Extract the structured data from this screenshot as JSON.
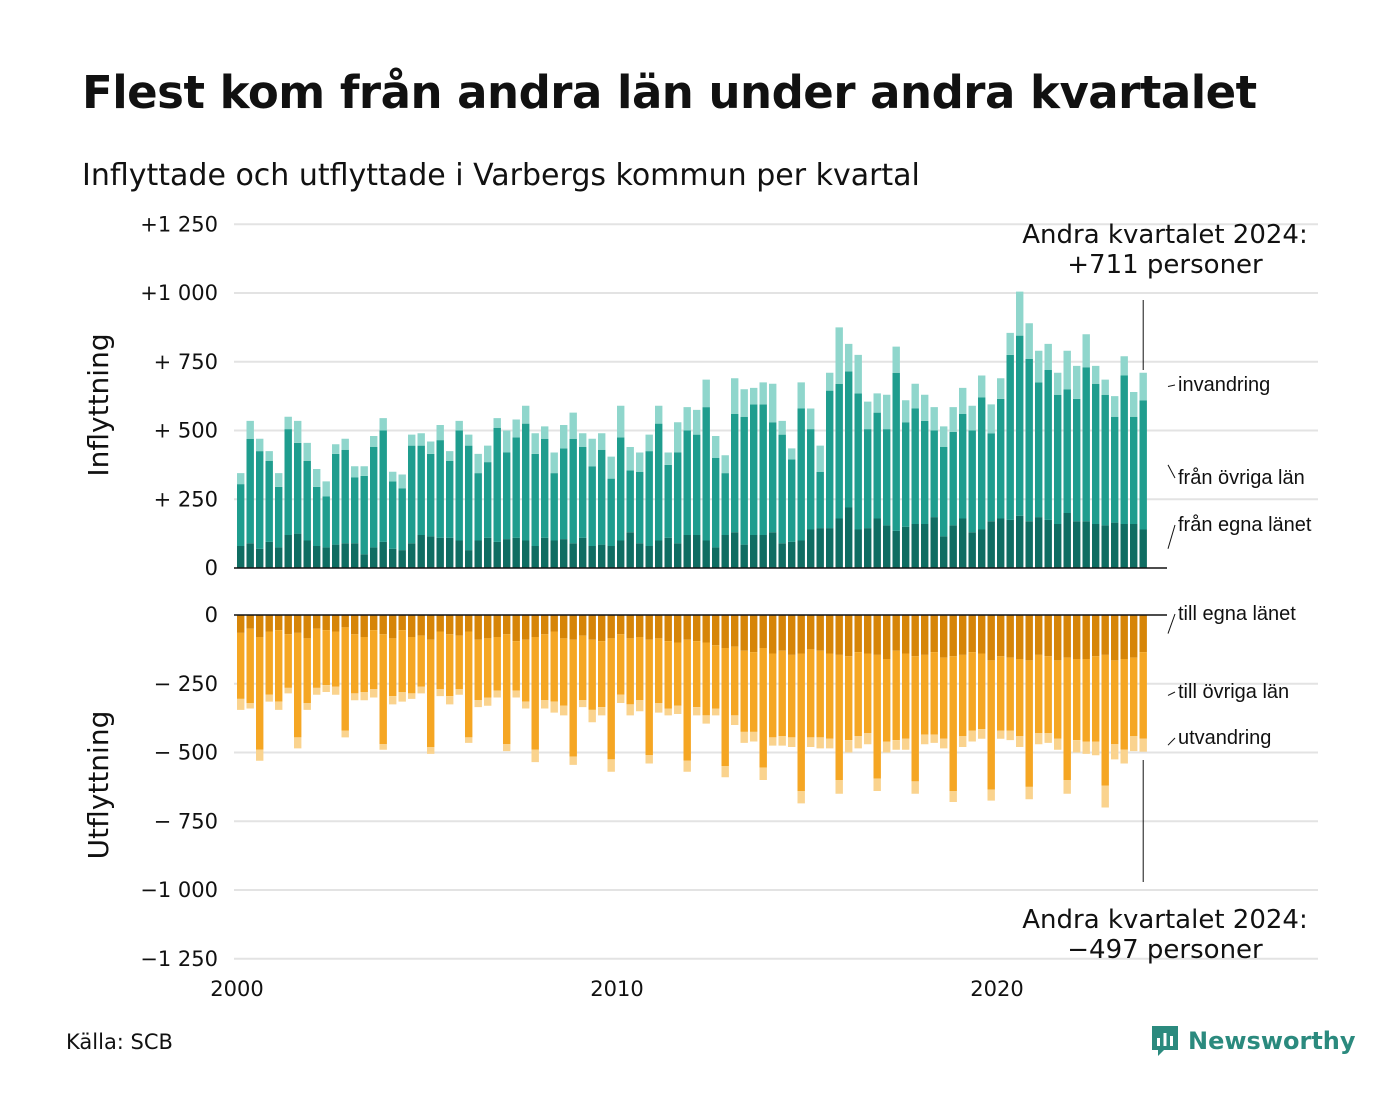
{
  "title": "Flest kom från andra län under andra kvartalet",
  "subtitle": "Inflyttade och utflyttade i Varbergs kommun per kvartal",
  "source": "Källa: SCB",
  "brand": "Newsworthy",
  "colors": {
    "in_egna": "#0f6d62",
    "in_ovriga": "#1f9d8e",
    "in_invandring": "#8fd6cc",
    "out_egna": "#d68508",
    "out_ovriga": "#f5a623",
    "out_utvandring": "#fad38e",
    "brand": "#2b8a7e"
  },
  "chart_data": {
    "type": "bar",
    "stacked": true,
    "xlabel": "",
    "x_ticks": [
      "2000",
      "2010",
      "2020"
    ],
    "x_start": "2000-Q1",
    "x_end": "2024-Q2",
    "grid": true,
    "top_panel": {
      "ylabel": "Inflyttning",
      "ylim": [
        0,
        1250
      ],
      "ytick_labels": [
        "0",
        "+  250",
        "+  500",
        "+  750",
        "+1 000",
        "+1 250"
      ],
      "series": [
        {
          "name": "från egna länet",
          "label": "från egna länet",
          "values": [
            80,
            90,
            70,
            95,
            75,
            120,
            125,
            100,
            80,
            75,
            85,
            90,
            90,
            50,
            75,
            95,
            70,
            65,
            90,
            120,
            115,
            110,
            110,
            100,
            65,
            100,
            110,
            95,
            105,
            110,
            100,
            80,
            110,
            100,
            105,
            90,
            110,
            80,
            85,
            80,
            100,
            130,
            90,
            80,
            100,
            110,
            90,
            120,
            120,
            100,
            75,
            120,
            130,
            85,
            120,
            120,
            130,
            90,
            95,
            100,
            140,
            145,
            145,
            180,
            220,
            140,
            145,
            180,
            155,
            135,
            150,
            160,
            160,
            185,
            115,
            155,
            180,
            130,
            140,
            170,
            180,
            175,
            190,
            170,
            185,
            175,
            160,
            200,
            170,
            170,
            160,
            155,
            165,
            160,
            160,
            140
          ]
        },
        {
          "name": "från övriga län",
          "label": "från övriga län",
          "values": [
            225,
            380,
            355,
            295,
            220,
            385,
            330,
            290,
            215,
            185,
            330,
            340,
            240,
            285,
            365,
            405,
            245,
            225,
            355,
            325,
            300,
            355,
            280,
            400,
            380,
            245,
            275,
            415,
            315,
            365,
            425,
            335,
            360,
            245,
            330,
            380,
            330,
            290,
            345,
            245,
            375,
            225,
            260,
            345,
            425,
            265,
            330,
            380,
            365,
            485,
            325,
            225,
            430,
            465,
            475,
            475,
            400,
            395,
            300,
            480,
            365,
            205,
            500,
            490,
            495,
            495,
            360,
            385,
            350,
            575,
            380,
            420,
            375,
            315,
            325,
            340,
            380,
            370,
            480,
            320,
            435,
            600,
            655,
            590,
            490,
            545,
            470,
            450,
            445,
            560,
            510,
            475,
            385,
            540,
            390,
            470
          ]
        },
        {
          "name": "invandring",
          "label": "invandring",
          "values": [
            40,
            65,
            45,
            35,
            50,
            45,
            80,
            65,
            65,
            55,
            35,
            40,
            40,
            35,
            40,
            45,
            35,
            50,
            40,
            45,
            45,
            55,
            35,
            35,
            40,
            70,
            60,
            35,
            80,
            65,
            65,
            75,
            45,
            75,
            85,
            95,
            50,
            100,
            60,
            80,
            115,
            85,
            70,
            60,
            65,
            45,
            110,
            85,
            90,
            100,
            80,
            65,
            130,
            100,
            60,
            80,
            140,
            50,
            40,
            95,
            75,
            95,
            65,
            205,
            100,
            140,
            100,
            70,
            125,
            95,
            80,
            90,
            95,
            85,
            75,
            90,
            95,
            90,
            80,
            105,
            75,
            80,
            160,
            130,
            115,
            95,
            80,
            140,
            120,
            120,
            65,
            55,
            75,
            70,
            90,
            100
          ]
        }
      ],
      "annotation": "Andra kvartalet 2024:\n+711 personer",
      "annotation_title": "Andra kvartalet 2024:",
      "annotation_value": "+711 personer"
    },
    "bottom_panel": {
      "ylabel": "Utflyttning",
      "ylim": [
        -1250,
        0
      ],
      "ytick_labels": [
        "0",
        "−  250",
        "−  500",
        "−  750",
        "−1 000",
        "−1 250"
      ],
      "series": [
        {
          "name": "till egna länet",
          "label": "till egna länet",
          "values": [
            -65,
            -50,
            -80,
            -60,
            -55,
            -70,
            -65,
            -85,
            -50,
            -55,
            -60,
            -45,
            -70,
            -80,
            -55,
            -70,
            -85,
            -55,
            -80,
            -75,
            -90,
            -60,
            -70,
            -75,
            -60,
            -90,
            -85,
            -80,
            -70,
            -95,
            -90,
            -80,
            -70,
            -60,
            -85,
            -90,
            -75,
            -90,
            -95,
            -85,
            -70,
            -85,
            -80,
            -90,
            -85,
            -95,
            -100,
            -90,
            -95,
            -100,
            -110,
            -120,
            -115,
            -130,
            -135,
            -120,
            -140,
            -130,
            -145,
            -140,
            -125,
            -130,
            -140,
            -145,
            -150,
            -135,
            -140,
            -145,
            -160,
            -130,
            -140,
            -150,
            -145,
            -135,
            -155,
            -150,
            -145,
            -135,
            -140,
            -165,
            -150,
            -155,
            -160,
            -165,
            -145,
            -150,
            -165,
            -155,
            -160,
            -160,
            -150,
            -145,
            -165,
            -160,
            -155,
            -135
          ]
        },
        {
          "name": "till övriga län",
          "label": "till övriga län",
          "values": [
            -240,
            -270,
            -410,
            -230,
            -260,
            -195,
            -380,
            -235,
            -215,
            -200,
            -200,
            -375,
            -215,
            -200,
            -215,
            -400,
            -210,
            -225,
            -205,
            -185,
            -390,
            -210,
            -225,
            -195,
            -385,
            -220,
            -215,
            -195,
            -400,
            -180,
            -225,
            -410,
            -240,
            -255,
            -245,
            -425,
            -235,
            -255,
            -240,
            -440,
            -220,
            -240,
            -230,
            -420,
            -235,
            -245,
            -230,
            -440,
            -240,
            -265,
            -230,
            -430,
            -250,
            -295,
            -290,
            -435,
            -305,
            -310,
            -300,
            -500,
            -320,
            -315,
            -310,
            -455,
            -305,
            -305,
            -290,
            -450,
            -300,
            -325,
            -310,
            -455,
            -290,
            -300,
            -295,
            -490,
            -295,
            -285,
            -275,
            -470,
            -270,
            -265,
            -280,
            -460,
            -285,
            -280,
            -285,
            -445,
            -295,
            -300,
            -310,
            -475,
            -305,
            -330,
            -285,
            -315
          ]
        },
        {
          "name": "utvandring",
          "label": "utvandring",
          "values": [
            -40,
            -20,
            -40,
            -25,
            -30,
            -20,
            -40,
            -25,
            -25,
            -25,
            -30,
            -25,
            -25,
            -30,
            -30,
            -20,
            -30,
            -35,
            -20,
            -25,
            -25,
            -25,
            -30,
            -20,
            -20,
            -25,
            -30,
            -25,
            -25,
            -25,
            -25,
            -45,
            -30,
            -40,
            -35,
            -30,
            -25,
            -45,
            -30,
            -45,
            -30,
            -40,
            -40,
            -30,
            -35,
            -25,
            -30,
            -40,
            -30,
            -30,
            -25,
            -40,
            -35,
            -40,
            -35,
            -45,
            -30,
            -35,
            -35,
            -45,
            -35,
            -40,
            -35,
            -50,
            -45,
            -45,
            -40,
            -45,
            -40,
            -35,
            -40,
            -45,
            -35,
            -30,
            -35,
            -40,
            -40,
            -40,
            -35,
            -40,
            -30,
            -35,
            -40,
            -45,
            -40,
            -35,
            -40,
            -50,
            -45,
            -45,
            -50,
            -80,
            -55,
            -50,
            -55,
            -47
          ]
        }
      ],
      "annotation": "Andra kvartalet 2024:\n−497 personer",
      "annotation_title": "Andra kvartalet 2024:",
      "annotation_value": "−497 personer"
    }
  }
}
